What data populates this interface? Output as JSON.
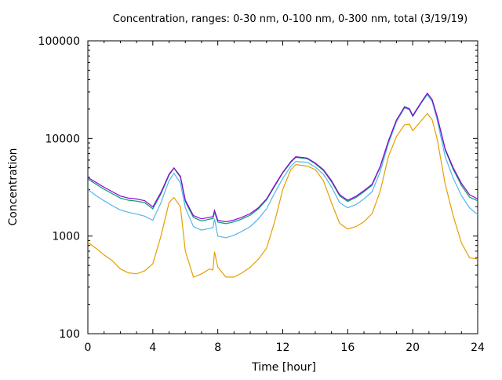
{
  "chart_data": {
    "type": "line",
    "title": "Concentration, ranges: 0-30 nm, 0-100 nm, 0-300 nm, total (3/19/19)",
    "xlabel": "Time [hour]",
    "ylabel": "Concentration",
    "xlim": [
      0,
      24
    ],
    "ylim": [
      100,
      100000
    ],
    "yscale": "log",
    "grid": false,
    "legend": "none",
    "xticks": [
      0,
      4,
      8,
      12,
      16,
      20,
      24
    ],
    "xtick_labels": [
      "0",
      "4",
      "8",
      "12",
      "16",
      "20",
      "24"
    ],
    "yticks": [
      100,
      1000,
      10000,
      100000
    ],
    "ytick_labels": [
      "100",
      "1000",
      "10000",
      "100000"
    ],
    "x": [
      0,
      0.5,
      1,
      1.5,
      2,
      2.5,
      3,
      3.5,
      4,
      4.5,
      5,
      5.3,
      5.7,
      6,
      6.5,
      7,
      7.5,
      7.7,
      7.8,
      8,
      8.5,
      9,
      9.5,
      10,
      10.5,
      11,
      11.5,
      12,
      12.5,
      12.8,
      13.5,
      14,
      14.5,
      15,
      15.5,
      16,
      16.5,
      17,
      17.5,
      18,
      18.5,
      19,
      19.5,
      19.8,
      20,
      20.5,
      20.9,
      21.2,
      21.5,
      22,
      22.5,
      23,
      23.5,
      24
    ],
    "series": [
      {
        "name": "total",
        "color": "#9400d3",
        "values": [
          3980,
          3550,
          3160,
          2850,
          2570,
          2450,
          2400,
          2300,
          1990,
          2800,
          4300,
          5000,
          4100,
          2330,
          1620,
          1500,
          1560,
          1580,
          1830,
          1450,
          1400,
          1460,
          1560,
          1700,
          1950,
          2400,
          3300,
          4500,
          5800,
          6500,
          6300,
          5600,
          4800,
          3700,
          2650,
          2330,
          2550,
          2920,
          3400,
          5200,
          9400,
          15500,
          21000,
          20000,
          17000,
          23000,
          29000,
          25000,
          17000,
          7800,
          5000,
          3470,
          2650,
          2400
        ]
      },
      {
        "name": "0-300 nm",
        "color": "#009e73",
        "values": [
          3850,
          3400,
          3020,
          2720,
          2450,
          2330,
          2280,
          2200,
          1900,
          2700,
          4200,
          4950,
          4000,
          2250,
          1550,
          1430,
          1490,
          1510,
          1760,
          1390,
          1340,
          1400,
          1500,
          1640,
          1900,
          2350,
          3230,
          4430,
          5700,
          6400,
          6200,
          5500,
          4700,
          3600,
          2580,
          2260,
          2480,
          2840,
          3320,
          5100,
          9300,
          15400,
          21200,
          20200,
          17200,
          23200,
          29000,
          24800,
          16800,
          7600,
          4800,
          3300,
          2500,
          2300
        ]
      },
      {
        "name": "0-100 nm",
        "color": "#56b4e9",
        "values": [
          3000,
          2600,
          2300,
          2050,
          1850,
          1750,
          1680,
          1600,
          1450,
          2200,
          3700,
          4400,
          3500,
          1950,
          1250,
          1150,
          1200,
          1220,
          1500,
          1000,
          960,
          1020,
          1120,
          1250,
          1500,
          1900,
          2750,
          3900,
          5200,
          5800,
          5700,
          5100,
          4300,
          3200,
          2200,
          1950,
          2100,
          2400,
          2850,
          4600,
          8800,
          14800,
          20500,
          19600,
          16800,
          22600,
          28000,
          23800,
          15600,
          6500,
          3900,
          2600,
          1950,
          1650
        ]
      },
      {
        "name": "0-30 nm",
        "color": "#e69f00",
        "values": [
          860,
          750,
          640,
          560,
          460,
          420,
          410,
          440,
          520,
          1000,
          2200,
          2480,
          2000,
          700,
          380,
          410,
          460,
          450,
          690,
          480,
          380,
          380,
          420,
          480,
          580,
          750,
          1400,
          3000,
          4800,
          5400,
          5200,
          4800,
          3700,
          2200,
          1350,
          1180,
          1250,
          1400,
          1700,
          2900,
          6500,
          10500,
          13800,
          14000,
          12000,
          15000,
          18000,
          15500,
          10000,
          3400,
          1600,
          850,
          600,
          580
        ]
      }
    ]
  }
}
